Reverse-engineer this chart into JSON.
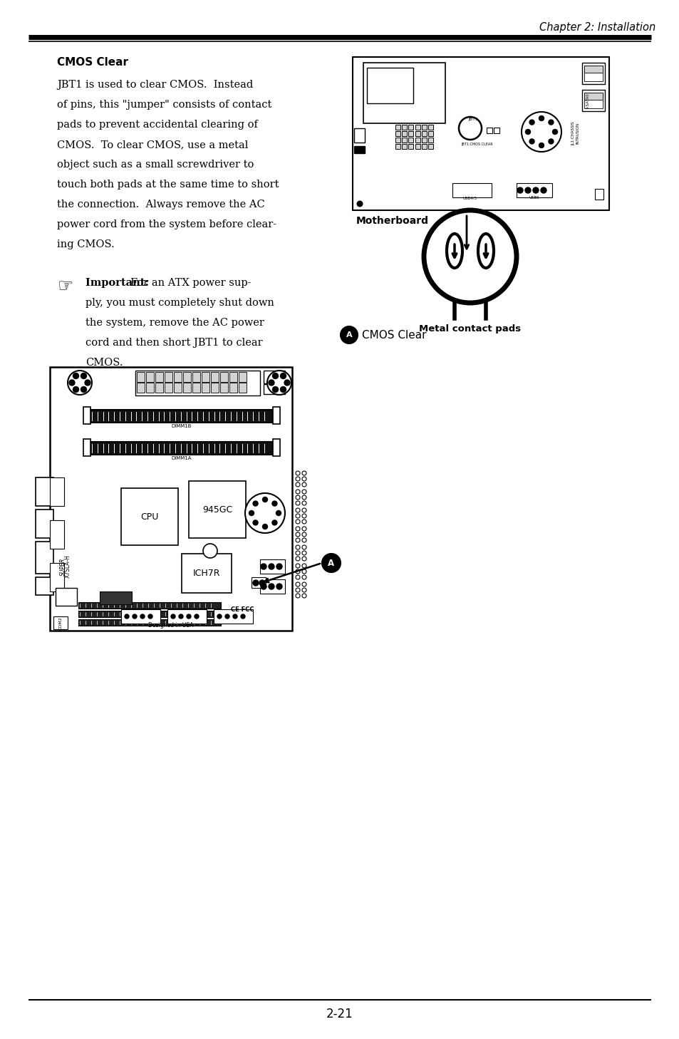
{
  "page_title": "Chapter 2: Installation",
  "section_title": "CMOS Clear",
  "body_text_lines": [
    "JBT1 is used to clear CMOS.  Instead",
    "of pins, this \"jumper\" consists of contact",
    "pads to prevent accidental clearing of",
    "CMOS.  To clear CMOS, use a metal",
    "object such as a small screwdriver to",
    "touch both pads at the same time to short",
    "the connection.  Always remove the AC",
    "power cord from the system before clear-",
    "ing CMOS."
  ],
  "important_lines": [
    "ply, you must completely shut down",
    "the system, remove the AC power",
    "cord and then short JBT1 to clear",
    "CMOS."
  ],
  "important_first": "For an ATX power sup-",
  "motherboard_label": "Motherboard",
  "metal_pads_label": "Metal contact pads",
  "cmos_clear_label": "CMOS Clear",
  "page_number": "2-21",
  "bg_color": "#ffffff",
  "text_color": "#000000"
}
